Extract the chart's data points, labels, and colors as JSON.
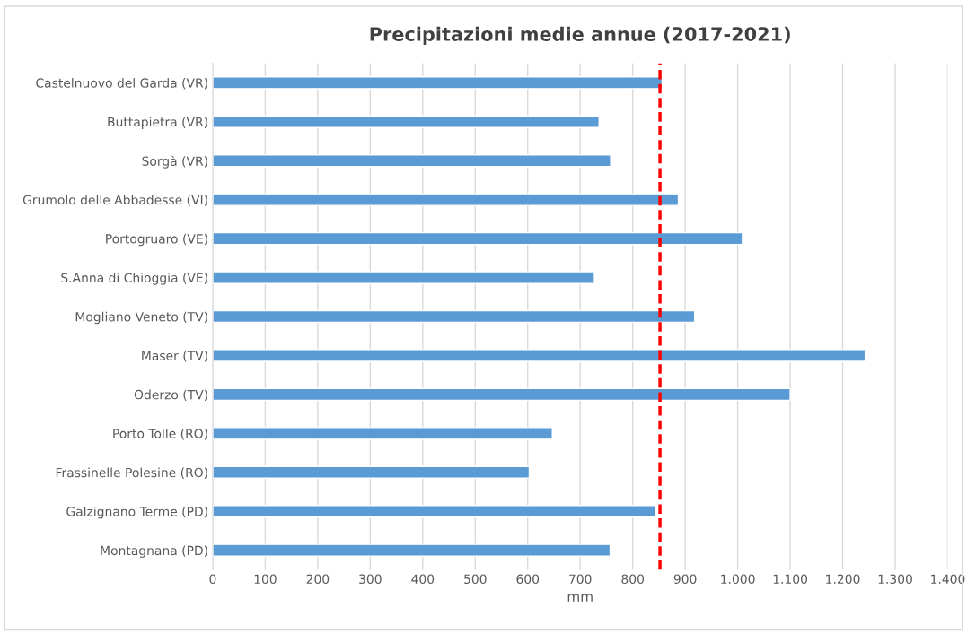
{
  "chart_data": {
    "type": "bar",
    "orientation": "horizontal",
    "title": "Precipitazioni medie annue (2017-2021)",
    "xlabel": "mm",
    "categories": [
      "Castelnuovo del Garda (VR)",
      "Buttapietra (VR)",
      "Sorgà (VR)",
      "Grumolo delle Abbadesse (VI)",
      "Portogruaro (VE)",
      "S.Anna di Chioggia (VE)",
      "Mogliano Veneto (TV)",
      "Maser (TV)",
      "Oderzo (TV)",
      "Porto Tolle (RO)",
      "Frassinelle Polesine (RO)",
      "Galzignano Terme (PD)",
      "Montagnana (PD)"
    ],
    "values": [
      856,
      736,
      758,
      887,
      1009,
      727,
      918,
      1243,
      1100,
      647,
      603,
      843,
      757
    ],
    "color": "#5b9bd5",
    "xlim": [
      0,
      1400
    ],
    "xticks": [
      0,
      100,
      200,
      300,
      400,
      500,
      600,
      700,
      800,
      900,
      {
        "value": 1000,
        "label": "1.000"
      },
      {
        "value": 1100,
        "label": "1.100"
      },
      {
        "value": 1200,
        "label": "1.200"
      },
      {
        "value": 1300,
        "label": "1.300"
      },
      {
        "value": 1400,
        "label": "1.400"
      }
    ],
    "grid": "x",
    "ref_lines": [
      {
        "axis": "x",
        "value": 852,
        "color": "#ff0000",
        "line_style": "dashed"
      }
    ]
  }
}
